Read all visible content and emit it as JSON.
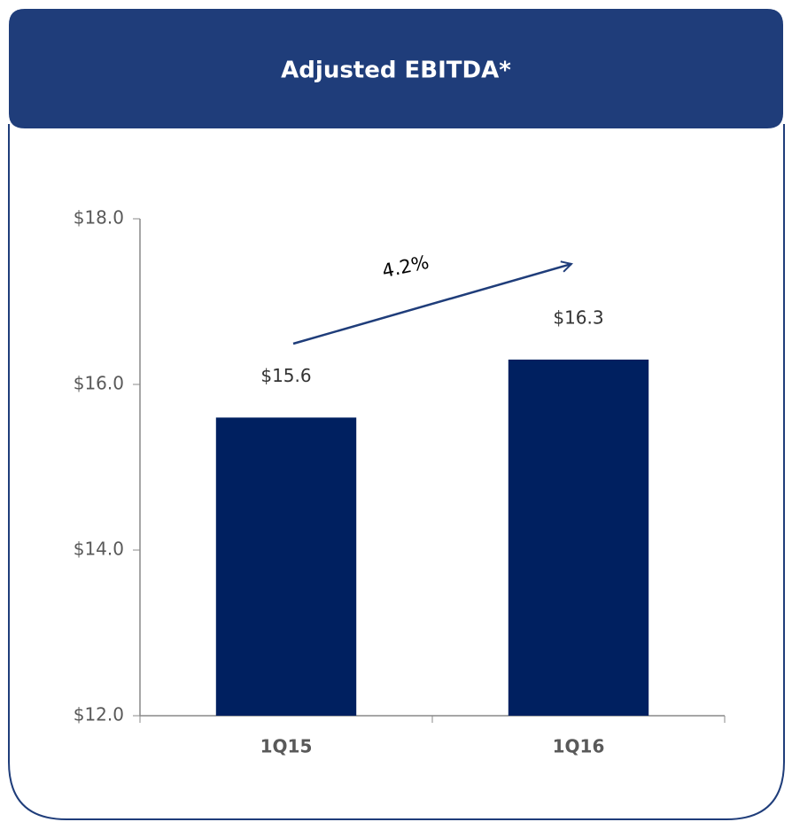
{
  "chart_data": {
    "type": "bar",
    "title": "Adjusted EBITDA*",
    "categories": [
      "1Q15",
      "1Q16"
    ],
    "values": [
      15.6,
      16.3
    ],
    "value_labels": [
      "$15.6",
      "$16.3"
    ],
    "color": "#002060",
    "ylim": [
      12,
      18
    ],
    "yticks": [
      {
        "value": 12,
        "label": "$12.0"
      },
      {
        "value": 14,
        "label": "$14.0"
      },
      {
        "value": 16,
        "label": "$16.0"
      },
      {
        "value": 18,
        "label": "$18.0"
      }
    ],
    "annotations": [
      "4.2%"
    ],
    "grid": false
  }
}
